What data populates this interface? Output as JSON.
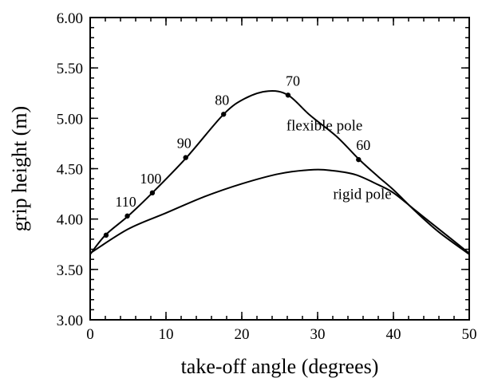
{
  "chart_data": {
    "type": "line",
    "xlabel": "take-off angle (degrees)",
    "ylabel": "grip height (m)",
    "xlim": [
      0,
      50
    ],
    "ylim": [
      3.0,
      6.0
    ],
    "x_ticks": [
      {
        "value": 0,
        "label": "0"
      },
      {
        "value": 10,
        "label": "10"
      },
      {
        "value": 20,
        "label": "20"
      },
      {
        "value": 30,
        "label": "30"
      },
      {
        "value": 40,
        "label": "40"
      },
      {
        "value": 50,
        "label": "50"
      }
    ],
    "y_ticks": [
      {
        "value": 3.0,
        "label": "3.00"
      },
      {
        "value": 3.5,
        "label": "3.50"
      },
      {
        "value": 4.0,
        "label": "4.00"
      },
      {
        "value": 4.5,
        "label": "4.50"
      },
      {
        "value": 5.0,
        "label": "5.00"
      },
      {
        "value": 5.5,
        "label": "5.50"
      },
      {
        "value": 6.0,
        "label": "6.00"
      }
    ],
    "x_minor_step": 2,
    "y_minor_step": 0.1,
    "grid": false,
    "series": [
      {
        "name": "flexible pole",
        "x": [
          0,
          2,
          5,
          8.2,
          12.7,
          17.6,
          20.5,
          23.5,
          26.1,
          29,
          32.5,
          35.5,
          38,
          40,
          43,
          46,
          50
        ],
        "y": [
          3.65,
          3.84,
          4.03,
          4.26,
          4.61,
          5.04,
          5.2,
          5.27,
          5.23,
          5.03,
          4.82,
          4.59,
          4.42,
          4.29,
          4.07,
          3.87,
          3.65
        ],
        "markers": [
          {
            "x": 2.1,
            "y": 3.84,
            "label": ""
          },
          {
            "x": 4.9,
            "y": 4.03,
            "label": "110"
          },
          {
            "x": 8.2,
            "y": 4.26,
            "label": "100"
          },
          {
            "x": 12.6,
            "y": 4.61,
            "label": "90"
          },
          {
            "x": 17.6,
            "y": 5.04,
            "label": "80"
          },
          {
            "x": 26.1,
            "y": 5.23,
            "label": "70"
          },
          {
            "x": 35.4,
            "y": 4.59,
            "label": "60"
          }
        ]
      },
      {
        "name": "rigid pole",
        "x": [
          0,
          5,
          10,
          15,
          20,
          25,
          29.5,
          32,
          35,
          38,
          40,
          43,
          46,
          50
        ],
        "y": [
          3.66,
          3.9,
          4.06,
          4.22,
          4.35,
          4.45,
          4.49,
          4.48,
          4.44,
          4.34,
          4.26,
          4.08,
          3.9,
          3.66
        ]
      }
    ],
    "annotations": [
      {
        "text": "flexible pole",
        "x": 30.9,
        "y": 4.88
      },
      {
        "text": "rigid pole",
        "x": 35.9,
        "y": 4.2
      }
    ]
  }
}
